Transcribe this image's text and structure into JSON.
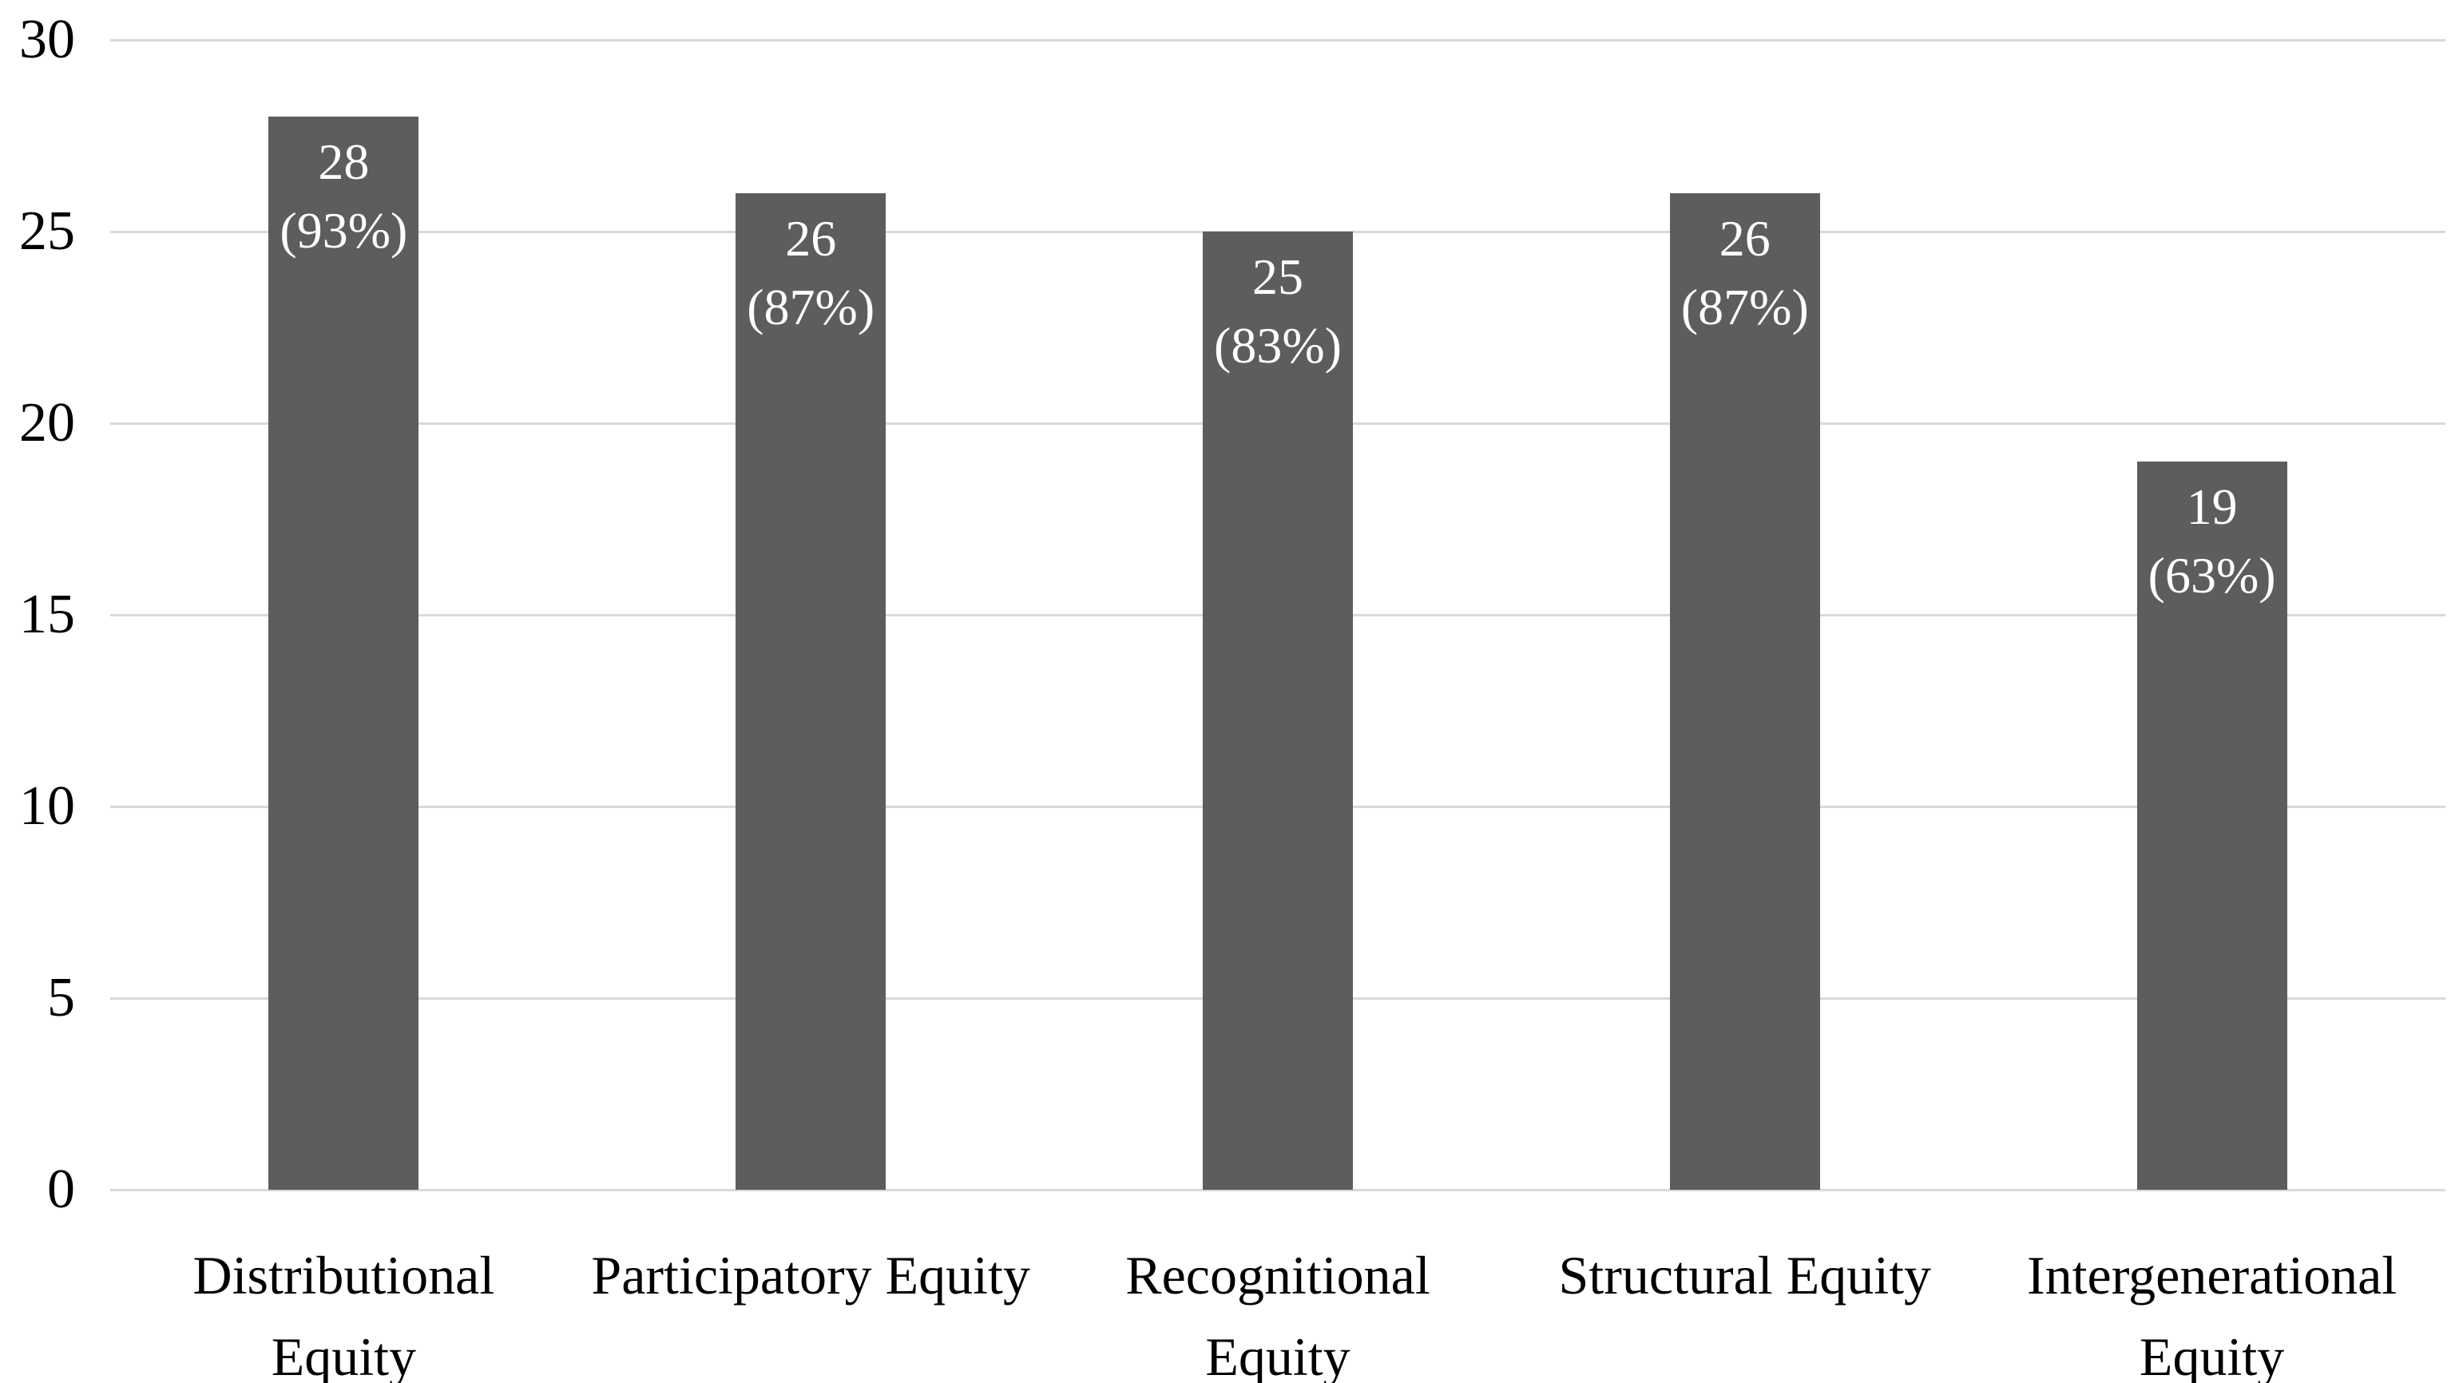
{
  "chart_data": {
    "type": "bar",
    "title": "",
    "xlabel": "",
    "ylabel": "",
    "categories": [
      "Distributional Equity",
      "Participatory Equity",
      "Recognitional Equity",
      "Structural Equity",
      "Intergenerational Equity"
    ],
    "category_lines": [
      [
        "Distributional",
        "Equity"
      ],
      [
        "Participatory Equity"
      ],
      [
        "Recognitional",
        "Equity"
      ],
      [
        "Structural Equity"
      ],
      [
        "Intergenerational",
        "Equity"
      ]
    ],
    "values": [
      28,
      26,
      25,
      26,
      19
    ],
    "percents": [
      93,
      87,
      83,
      87,
      63
    ],
    "bar_labels": [
      [
        "28",
        "(93%)"
      ],
      [
        "26",
        "(87%)"
      ],
      [
        "25",
        "(83%)"
      ],
      [
        "26",
        "(87%)"
      ],
      [
        "19",
        "(63%)"
      ]
    ],
    "ylim": [
      0,
      30
    ],
    "yticks": [
      0,
      5,
      10,
      15,
      20,
      25,
      30
    ],
    "grid": "horizontal",
    "legend": "none",
    "label_position": "inside-top",
    "colors": {
      "bar": "#5d5d5d",
      "gridline": "#d9d9d9",
      "bar_label_text": "#ffffff",
      "axis_text": "#000000",
      "background": "#ffffff"
    }
  }
}
